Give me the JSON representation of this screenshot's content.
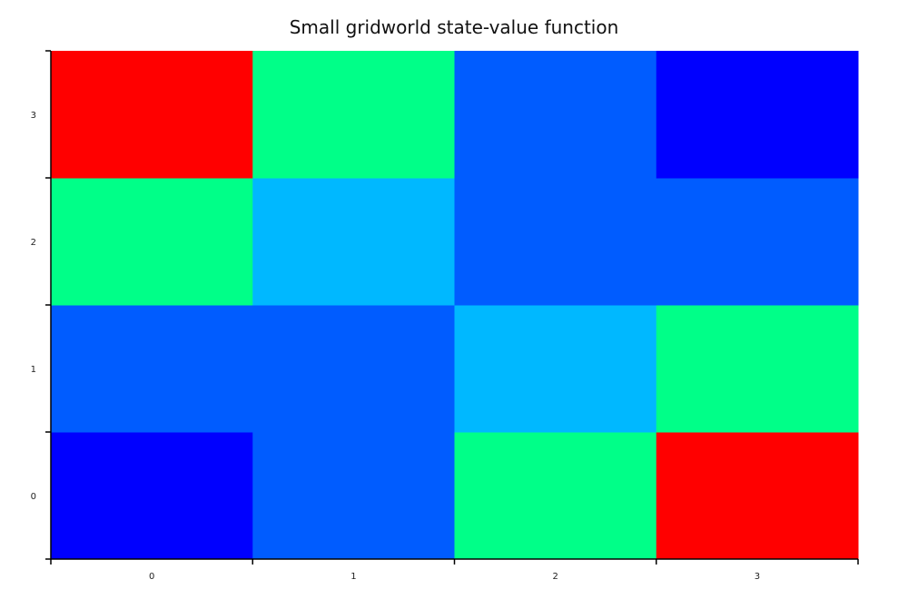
{
  "chart_data": {
    "type": "heatmap",
    "title": "Small gridworld state-value function",
    "xlabel": "",
    "ylabel": "",
    "x_categories": [
      "0",
      "1",
      "2",
      "3"
    ],
    "y_categories": [
      "0",
      "1",
      "2",
      "3"
    ],
    "y_order": "bottom-to-top",
    "colormap": "jet",
    "color_range": [
      0,
      1
    ],
    "values": [
      [
        0.0,
        0.3,
        0.6,
        1.0
      ],
      [
        0.3,
        0.3,
        0.45,
        0.6
      ],
      [
        0.6,
        0.45,
        0.3,
        0.3
      ],
      [
        1.0,
        0.6,
        0.3,
        0.0
      ]
    ],
    "grid": false,
    "legend": "none"
  }
}
